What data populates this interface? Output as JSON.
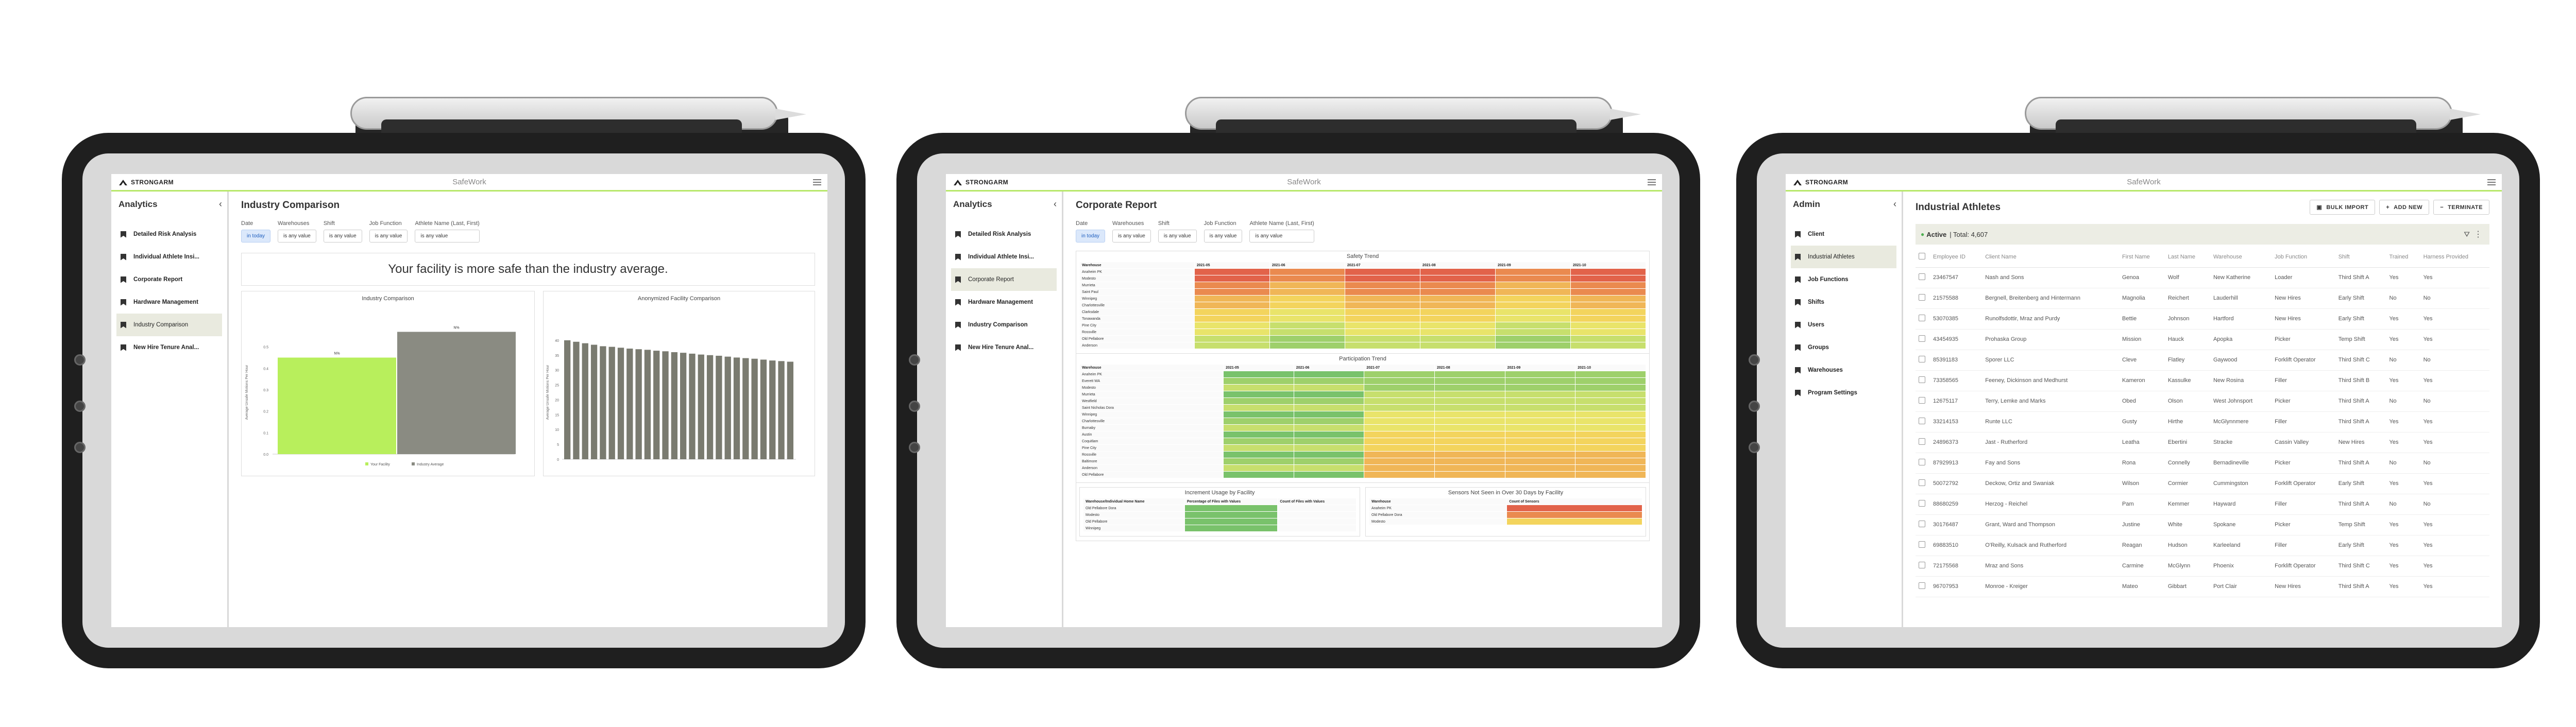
{
  "app": {
    "brand": "STRONGARM",
    "name": "SafeWork"
  },
  "accent": "#b7e86a",
  "tablet1": {
    "sidebar": {
      "title": "Analytics",
      "items": [
        "Detailed Risk Analysis",
        "Individual Athlete Insi...",
        "Corporate Report",
        "Hardware Management",
        "Industry Comparison",
        "New Hire Tenure Anal..."
      ],
      "active_index": 4
    },
    "page_title": "Industry Comparison",
    "filters": [
      {
        "label": "Date",
        "value": "in today",
        "selected": true
      },
      {
        "label": "Warehouses",
        "value": "is any value"
      },
      {
        "label": "Shift",
        "value": "is any value"
      },
      {
        "label": "Job Function",
        "value": "is any value"
      },
      {
        "label": "Athlete Name (Last, First)",
        "value": "is any value"
      }
    ],
    "banner": "Your facility is more safe than the industry average.",
    "chart_left": {
      "title": "Industry Comparison",
      "ylabel": "Average Unsafe Motions Per Hour",
      "bar_labels": [
        "N%",
        "N%"
      ],
      "legend": [
        "Your Facility",
        "Industry Average"
      ],
      "colors": [
        "#b8ef5c",
        "#8a8b82"
      ]
    },
    "chart_right": {
      "title": "Anonymized Facility Comparison",
      "ylabel": "Average Unsafe Motions Per Hour",
      "color": "#7a7b70"
    }
  },
  "chart_data": [
    {
      "type": "bar",
      "title": "Industry Comparison",
      "categories": [
        "Your Facility",
        "Industry Average"
      ],
      "values": [
        0.45,
        0.57
      ],
      "ylim": [
        0,
        0.6
      ],
      "yticks": [
        "0.0",
        "0.1",
        "0.2",
        "0.3",
        "0.4",
        "0.5"
      ]
    },
    {
      "type": "bar",
      "title": "Anonymized Facility Comparison",
      "values": [
        40,
        39.5,
        39,
        38.5,
        38,
        37.8,
        37.5,
        37.2,
        37,
        36.8,
        36.5,
        36.3,
        36,
        35.8,
        35.5,
        35.2,
        35,
        34.8,
        34.5,
        34.2,
        34,
        33.8,
        33.5,
        33.2,
        33,
        32.8
      ],
      "ylim": [
        0,
        45
      ],
      "yticks": [
        "0",
        "5",
        "10",
        "15",
        "20",
        "25",
        "30",
        "35",
        "40"
      ]
    }
  ],
  "tablet2": {
    "sidebar": {
      "title": "Analytics",
      "items": [
        "Detailed Risk Analysis",
        "Individual Athlete Insi...",
        "Corporate Report",
        "Hardware Management",
        "Industry Comparison",
        "New Hire Tenure Anal..."
      ],
      "active_index": 2
    },
    "page_title": "Corporate Report",
    "filters": [
      {
        "label": "Date",
        "value": "in today",
        "selected": true
      },
      {
        "label": "Warehouses",
        "value": "is any value"
      },
      {
        "label": "Shift",
        "value": "is any value"
      },
      {
        "label": "Job Function",
        "value": "is any value"
      },
      {
        "label": "Athlete Name (Last, First)",
        "value": "is any value"
      }
    ],
    "safety_trend": {
      "title": "Safety Trend",
      "col_header": "Warehouse",
      "months": [
        "2021-05",
        "2021-06",
        "2021-07",
        "2021-08",
        "2021-09",
        "2021-10"
      ],
      "rows": [
        "Anaheim PK",
        "Modesto",
        "Murrieta",
        "Saint Paul",
        "Winnipeg",
        "Charlottesville",
        "Clarksdale",
        "Tonawanda",
        "Pine City",
        "Rossville",
        "Old Pellabore",
        "Anderson"
      ]
    },
    "participation_trend": {
      "title": "Participation Trend",
      "col_header": "Warehouse",
      "months": [
        "2021-05",
        "2021-06",
        "2021-07",
        "2021-08",
        "2021-09",
        "2021-10"
      ],
      "rows": [
        "Anaheim PK",
        "Everett WA",
        "Modesto",
        "Murrieta",
        "Westfield",
        "Saint Nicholas Dora",
        "Winnipeg",
        "Charlottesville",
        "Burnaby",
        "Austin",
        "Coquitlam",
        "Pine City",
        "Rossville",
        "Baltimore",
        "Anderson",
        "Old Pellabore"
      ]
    },
    "bottom_left": {
      "title": "Increment Usage by Facility",
      "cols": [
        "Warehouse/Individual Home Name",
        "Percentage of Files with Values",
        "Count of Files with Values"
      ],
      "rows": [
        "Old Pellabore Dora",
        "Modesto",
        "Old Pellabore",
        "Winnipeg"
      ]
    },
    "bottom_right": {
      "title": "Sensors Not Seen in Over 30 Days by Facility",
      "cols": [
        "Warehouse",
        "Count of Sensors"
      ],
      "rows": [
        "Anaheim PK",
        "Old Pellabore Dora",
        "Modesto"
      ]
    }
  },
  "tablet3": {
    "sidebar": {
      "title": "Admin",
      "items": [
        "Client",
        "Industrial Athletes",
        "Job Functions",
        "Shifts",
        "Users",
        "Groups",
        "Warehouses",
        "Program Settings"
      ],
      "active_index": 1
    },
    "page_title": "Industrial Athletes",
    "actions": [
      {
        "icon": "▣",
        "label": "BULK IMPORT"
      },
      {
        "icon": "+",
        "label": "ADD NEW"
      },
      {
        "icon": "−",
        "label": "TERMINATE"
      }
    ],
    "active_label": "Active",
    "active_total": "| Total: 4,607",
    "columns": [
      "Employee ID",
      "Client Name",
      "First Name",
      "Last Name",
      "Warehouse",
      "Job Function",
      "Shift",
      "Trained",
      "Harness Provided"
    ],
    "rows": [
      [
        "23467547",
        "Nash and Sons",
        "Genoa",
        "Wolf",
        "New Katherine",
        "Loader",
        "Third Shift A",
        "Yes",
        "Yes"
      ],
      [
        "21575588",
        "Bergnell, Breitenberg and Hintermann",
        "Magnolia",
        "Reichert",
        "Lauderhill",
        "New Hires",
        "Early Shift",
        "No",
        "No"
      ],
      [
        "53070385",
        "Runolfsdottir, Mraz and Purdy",
        "Bettie",
        "Johnson",
        "Hartford",
        "New Hires",
        "Early Shift",
        "Yes",
        "Yes"
      ],
      [
        "43454935",
        "Prohaska Group",
        "Mission",
        "Hauck",
        "Apopka",
        "Picker",
        "Temp Shift",
        "Yes",
        "Yes"
      ],
      [
        "85391183",
        "Sporer LLC",
        "Cleve",
        "Flatley",
        "Gaywood",
        "Forklift Operator",
        "Third Shift C",
        "No",
        "No"
      ],
      [
        "73358565",
        "Feeney, Dickinson and Medhurst",
        "Kameron",
        "Kassulke",
        "New Rosina",
        "Filler",
        "Third Shift B",
        "Yes",
        "Yes"
      ],
      [
        "12675117",
        "Terry, Lemke and Marks",
        "Obed",
        "Olson",
        "West Johnsport",
        "Picker",
        "Third Shift A",
        "No",
        "No"
      ],
      [
        "33214153",
        "Runte LLC",
        "Gusty",
        "Hirthe",
        "McGlynnmere",
        "Filler",
        "Third Shift A",
        "Yes",
        "Yes"
      ],
      [
        "24896373",
        "Jast - Rutherford",
        "Leatha",
        "Ebertini",
        "Stracke",
        "Cassin Valley",
        "New Hires",
        "Yes",
        "Yes"
      ],
      [
        "87929913",
        "Fay and Sons",
        "Rona",
        "Connelly",
        "Bernadineville",
        "Picker",
        "Third Shift A",
        "No",
        "No"
      ],
      [
        "50072792",
        "Deckow, Ortiz and Swaniak",
        "Wilson",
        "Cormier",
        "Cummingston",
        "Forklift Operator",
        "Early Shift",
        "Yes",
        "Yes"
      ],
      [
        "88680259",
        "Herzog - Reichel",
        "Pam",
        "Kemmer",
        "Hayward",
        "Filler",
        "Third Shift A",
        "No",
        "No"
      ],
      [
        "30176487",
        "Grant, Ward and Thompson",
        "Justine",
        "White",
        "Spokane",
        "Picker",
        "Temp Shift",
        "Yes",
        "Yes"
      ],
      [
        "69883510",
        "O'Reilly, Kulsack and Rutherford",
        "Reagan",
        "Hudson",
        "Karleeland",
        "Filler",
        "Early Shift",
        "Yes",
        "Yes"
      ],
      [
        "72175568",
        "Mraz and Sons",
        "Carmine",
        "McGlynn",
        "Phoenix",
        "Forklift Operator",
        "Third Shift C",
        "Yes",
        "Yes"
      ],
      [
        "96707953",
        "Monroe - Kreiger",
        "Mateo",
        "Gibbart",
        "Port Clair",
        "New Hires",
        "Third Shift A",
        "Yes",
        "Yes"
      ]
    ]
  }
}
